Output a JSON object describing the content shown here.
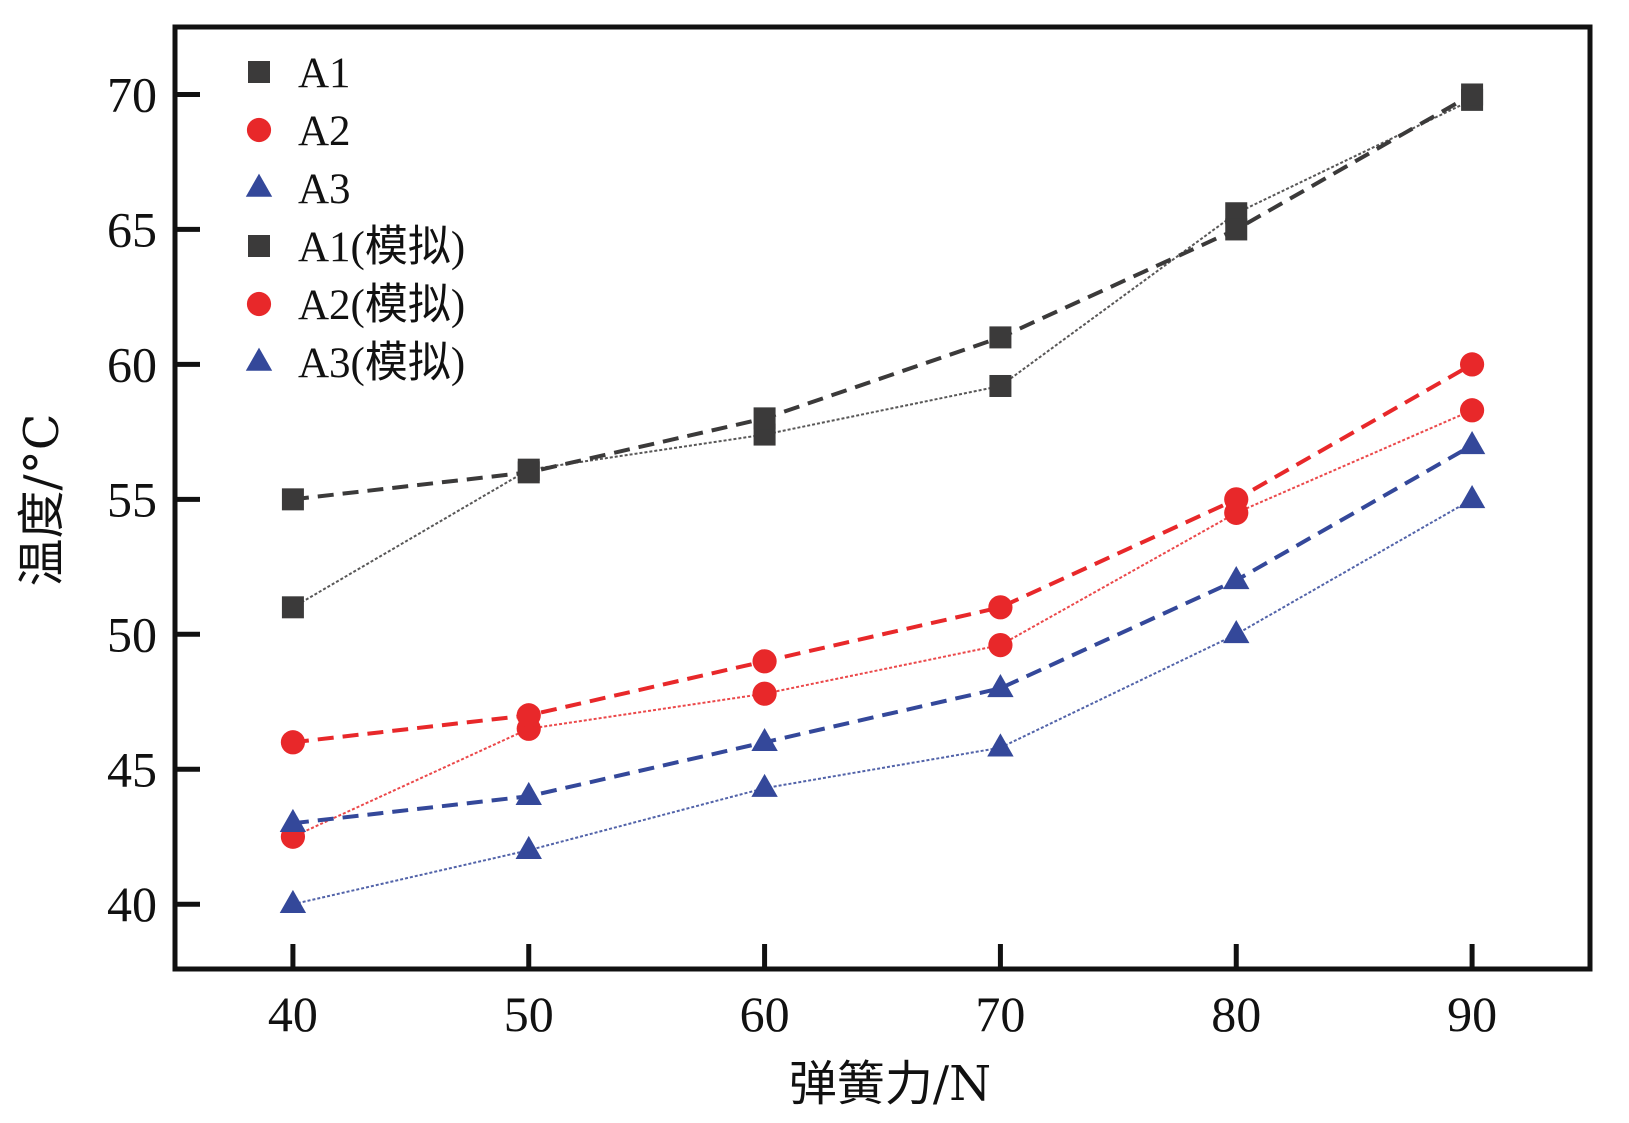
{
  "chart_data": {
    "type": "line",
    "title": "",
    "xlabel": "弹簧力/N",
    "ylabel": "温度/°C",
    "xlim": [
      35,
      95
    ],
    "ylim": [
      37.6,
      72.5
    ],
    "x": [
      40,
      50,
      60,
      70,
      80,
      90
    ],
    "xticks": [
      40,
      50,
      60,
      70,
      80,
      90
    ],
    "yticks": [
      40,
      45,
      50,
      55,
      60,
      65,
      70
    ],
    "grid": false,
    "legend_position": "top-left",
    "series": [
      {
        "name": "A1",
        "marker": "square",
        "line": "dotted",
        "color": "#3b3a3a",
        "values": [
          51.0,
          56.1,
          57.4,
          59.2,
          65.6,
          69.8
        ]
      },
      {
        "name": "A2",
        "marker": "circle",
        "line": "dotted",
        "color": "#e8282a",
        "values": [
          42.5,
          46.5,
          47.8,
          49.6,
          54.5,
          58.3
        ]
      },
      {
        "name": "A3",
        "marker": "triangle",
        "line": "dotted",
        "color": "#34489a",
        "values": [
          40.0,
          42.0,
          44.3,
          45.8,
          50.0,
          55.0
        ]
      },
      {
        "name": "A1(模拟)",
        "marker": "square",
        "line": "dashed",
        "color": "#3b3a3a",
        "values": [
          55.0,
          56.0,
          58.0,
          61.0,
          65.0,
          70.0
        ]
      },
      {
        "name": "A2(模拟)",
        "marker": "circle",
        "line": "dashed",
        "color": "#e8282a",
        "values": [
          46.0,
          47.0,
          49.0,
          51.0,
          55.0,
          60.0
        ]
      },
      {
        "name": "A3(模拟)",
        "marker": "triangle",
        "line": "dashed",
        "color": "#34489a",
        "values": [
          43.0,
          44.0,
          46.0,
          48.0,
          52.0,
          57.0
        ]
      }
    ]
  }
}
